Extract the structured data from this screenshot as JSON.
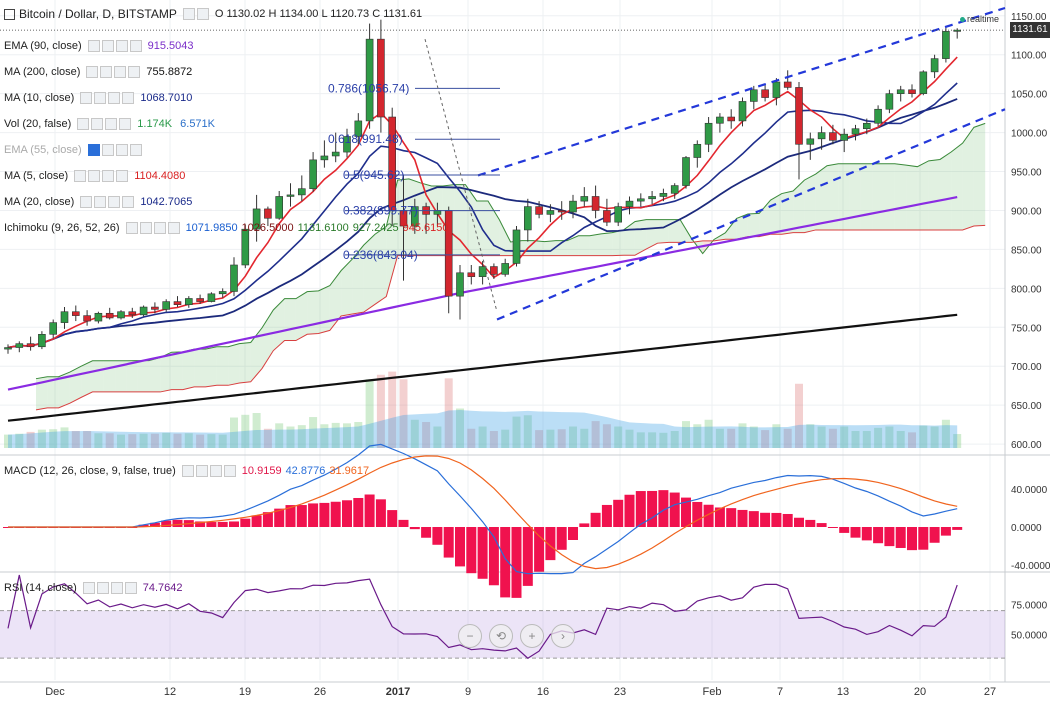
{
  "header": {
    "symbol_title": "Bitcoin / Dollar, D, BITSTAMP",
    "ohlc": "O 1130.02  H 1134.00  L 1120.73  C 1131.61"
  },
  "legend": [
    {
      "label": "EMA (90, close)",
      "value": "915.5043",
      "color": "#7b2fc9",
      "faded": false
    },
    {
      "label": "MA (200, close)",
      "value": "755.8872",
      "color": "#111111",
      "faded": false
    },
    {
      "label": "MA (10, close)",
      "value": "1068.7010",
      "color": "#1a2a8a",
      "faded": false
    },
    {
      "label": "Vol (20, false)",
      "value": "1.174K",
      "value2": "6.571K",
      "color": "#2a9a4a",
      "color2": "#2a6fc9",
      "faded": false
    },
    {
      "label": "EMA (55, close)",
      "value": "",
      "color": "#999999",
      "faded": true
    },
    {
      "label": "MA (5, close)",
      "value": "1104.4080",
      "color": "#d92020",
      "faded": false
    },
    {
      "label": "MA (20, close)",
      "value": "1042.7065",
      "color": "#1a2a8a",
      "faded": false
    },
    {
      "label": "Ichimoku (9, 26, 52, 26)",
      "values": [
        "1071.9850",
        "1026.5000",
        "1131.6100",
        "927.2425",
        "945.6150"
      ],
      "colors": [
        "#1a5fd0",
        "#7a1010",
        "#2a7a2a",
        "#2a7a2a",
        "#d92020"
      ],
      "faded": false
    }
  ],
  "fib_labels": [
    "0.786(1056.74)",
    "0.618(991.48)",
    "0.5(945.62)",
    "0.382(899.77)",
    "0.236(843.04)"
  ],
  "realtime_label": "realtime",
  "last_price": "1131.61",
  "macd": {
    "label": "MACD (12, 26, close, 9, false, true)",
    "values": [
      "10.9159",
      "42.8776",
      "31.9617"
    ],
    "colors": [
      "#e0184a",
      "#2a6fd9",
      "#f0641e"
    ]
  },
  "rsi": {
    "label": "RSI (14, close)",
    "value": "74.7642",
    "color": "#6a1a8a"
  },
  "zoom_controls": [
    "−",
    "⟲",
    "+",
    "›"
  ],
  "price_axis": [
    "1150.00",
    "1100.00",
    "1050.00",
    "1000.00",
    "950.00",
    "900.00",
    "850.00",
    "800.00",
    "750.00",
    "700.00",
    "650.00",
    "600.00"
  ],
  "macd_axis": [
    "40.0000",
    "0.0000",
    "-40.0000"
  ],
  "rsi_axis": [
    "75.0000",
    "50.0000"
  ],
  "date_axis": [
    "Dec",
    "12",
    "19",
    "26",
    "2017",
    "9",
    "16",
    "23",
    "Feb",
    "7",
    "13",
    "20",
    "27"
  ],
  "colors": {
    "up": "#2f9a46",
    "down": "#d3262e",
    "ma5": "#e3272f",
    "ma10": "#1f2e8c",
    "ma20": "#1c2a7c",
    "ema90": "#8a2be2",
    "ma200": "#111111",
    "trend": "#2338d9",
    "rsi": "#6a1a8a"
  },
  "chart_data": {
    "type": "candlestick",
    "symbol": "Bitcoin / Dollar, D, BITSTAMP",
    "price_range": [
      595,
      1160
    ],
    "candles": [
      [
        722,
        728,
        716,
        724
      ],
      [
        724,
        732,
        718,
        729
      ],
      [
        729,
        738,
        720,
        725
      ],
      [
        725,
        745,
        722,
        741
      ],
      [
        741,
        760,
        736,
        756
      ],
      [
        756,
        776,
        748,
        770
      ],
      [
        770,
        778,
        758,
        765
      ],
      [
        765,
        772,
        752,
        758
      ],
      [
        758,
        770,
        755,
        768
      ],
      [
        768,
        775,
        760,
        762
      ],
      [
        762,
        772,
        760,
        770
      ],
      [
        770,
        775,
        762,
        766
      ],
      [
        766,
        778,
        764,
        776
      ],
      [
        776,
        782,
        768,
        773
      ],
      [
        773,
        786,
        770,
        783
      ],
      [
        783,
        790,
        776,
        779
      ],
      [
        779,
        790,
        775,
        787
      ],
      [
        787,
        792,
        780,
        783
      ],
      [
        783,
        795,
        782,
        793
      ],
      [
        793,
        800,
        788,
        796
      ],
      [
        796,
        840,
        790,
        830
      ],
      [
        830,
        882,
        826,
        876
      ],
      [
        876,
        920,
        860,
        902
      ],
      [
        902,
        905,
        880,
        890
      ],
      [
        890,
        925,
        888,
        918
      ],
      [
        918,
        935,
        905,
        920
      ],
      [
        920,
        945,
        912,
        928
      ],
      [
        928,
        975,
        924,
        965
      ],
      [
        965,
        990,
        955,
        970
      ],
      [
        970,
        1000,
        962,
        975
      ],
      [
        975,
        1005,
        968,
        995
      ],
      [
        995,
        1025,
        985,
        1015
      ],
      [
        1015,
        1140,
        1005,
        1120
      ],
      [
        1120,
        1145,
        1000,
        1020
      ],
      [
        1020,
        1032,
        880,
        900
      ],
      [
        900,
        945,
        810,
        880
      ],
      [
        880,
        915,
        870,
        905
      ],
      [
        905,
        910,
        870,
        895
      ],
      [
        895,
        910,
        880,
        900
      ],
      [
        900,
        905,
        768,
        790
      ],
      [
        790,
        830,
        760,
        820
      ],
      [
        820,
        830,
        805,
        815
      ],
      [
        815,
        835,
        805,
        828
      ],
      [
        828,
        832,
        812,
        818
      ],
      [
        818,
        838,
        815,
        832
      ],
      [
        832,
        880,
        828,
        875
      ],
      [
        875,
        915,
        860,
        905
      ],
      [
        905,
        912,
        890,
        895
      ],
      [
        895,
        908,
        885,
        900
      ],
      [
        900,
        912,
        888,
        898
      ],
      [
        898,
        920,
        890,
        912
      ],
      [
        912,
        930,
        905,
        918
      ],
      [
        918,
        932,
        890,
        900
      ],
      [
        900,
        915,
        880,
        885
      ],
      [
        885,
        910,
        880,
        905
      ],
      [
        905,
        918,
        895,
        912
      ],
      [
        912,
        922,
        905,
        915
      ],
      [
        915,
        925,
        908,
        918
      ],
      [
        918,
        928,
        912,
        922
      ],
      [
        922,
        935,
        915,
        932
      ],
      [
        932,
        970,
        928,
        968
      ],
      [
        968,
        990,
        955,
        985
      ],
      [
        985,
        1020,
        975,
        1012
      ],
      [
        1012,
        1025,
        1000,
        1020
      ],
      [
        1020,
        1030,
        1005,
        1015
      ],
      [
        1015,
        1045,
        1008,
        1040
      ],
      [
        1040,
        1060,
        1030,
        1055
      ],
      [
        1055,
        1062,
        1040,
        1045
      ],
      [
        1045,
        1070,
        1035,
        1065
      ],
      [
        1065,
        1080,
        1055,
        1058
      ],
      [
        1058,
        1065,
        940,
        985
      ],
      [
        985,
        1000,
        965,
        992
      ],
      [
        992,
        1008,
        978,
        1000
      ],
      [
        1000,
        1010,
        985,
        990
      ],
      [
        990,
        1005,
        975,
        998
      ],
      [
        998,
        1010,
        990,
        1005
      ],
      [
        1005,
        1018,
        998,
        1012
      ],
      [
        1012,
        1035,
        1008,
        1030
      ],
      [
        1030,
        1055,
        1025,
        1050
      ],
      [
        1050,
        1060,
        1040,
        1055
      ],
      [
        1055,
        1062,
        1045,
        1050
      ],
      [
        1050,
        1080,
        1048,
        1078
      ],
      [
        1078,
        1100,
        1070,
        1095
      ],
      [
        1095,
        1135,
        1090,
        1130
      ],
      [
        1130,
        1134,
        1120.73,
        1131.61
      ]
    ]
  }
}
